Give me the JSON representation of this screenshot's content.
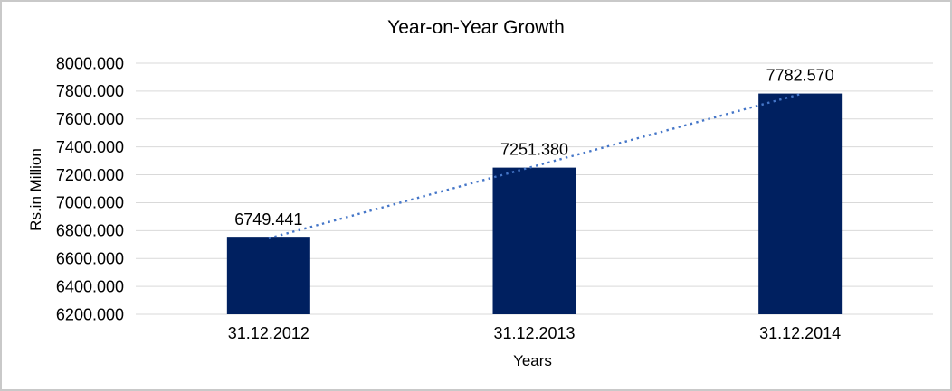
{
  "window": {
    "background_color": "#ffffff",
    "border_color": "#c9c9c9"
  },
  "chart_data": {
    "type": "bar",
    "title": "Year-on-Year Growth",
    "xlabel": "Years",
    "ylabel": "Rs.in Million",
    "categories": [
      "31.12.2012",
      "31.12.2013",
      "31.12.2014"
    ],
    "values": [
      6749.441,
      7251.38,
      7782.57
    ],
    "data_labels": [
      "6749.441",
      "7251.380",
      "7782.570"
    ],
    "ylim": [
      6200,
      8000
    ],
    "ytick_step": 200,
    "ytick_labels": [
      "8000.000",
      "7800.000",
      "7600.000",
      "7400.000",
      "7200.000",
      "7000.000",
      "6800.000",
      "6600.000",
      "6400.000",
      "6200.000"
    ],
    "grid": true,
    "legend": "none",
    "bar_color": "#002060",
    "gridline_color": "#d9d9d9",
    "axis_line_color": "#d9d9d9",
    "text_color": "#000000",
    "trendline": {
      "type": "linear",
      "line_style": "dotted",
      "color": "#4576c8"
    }
  }
}
